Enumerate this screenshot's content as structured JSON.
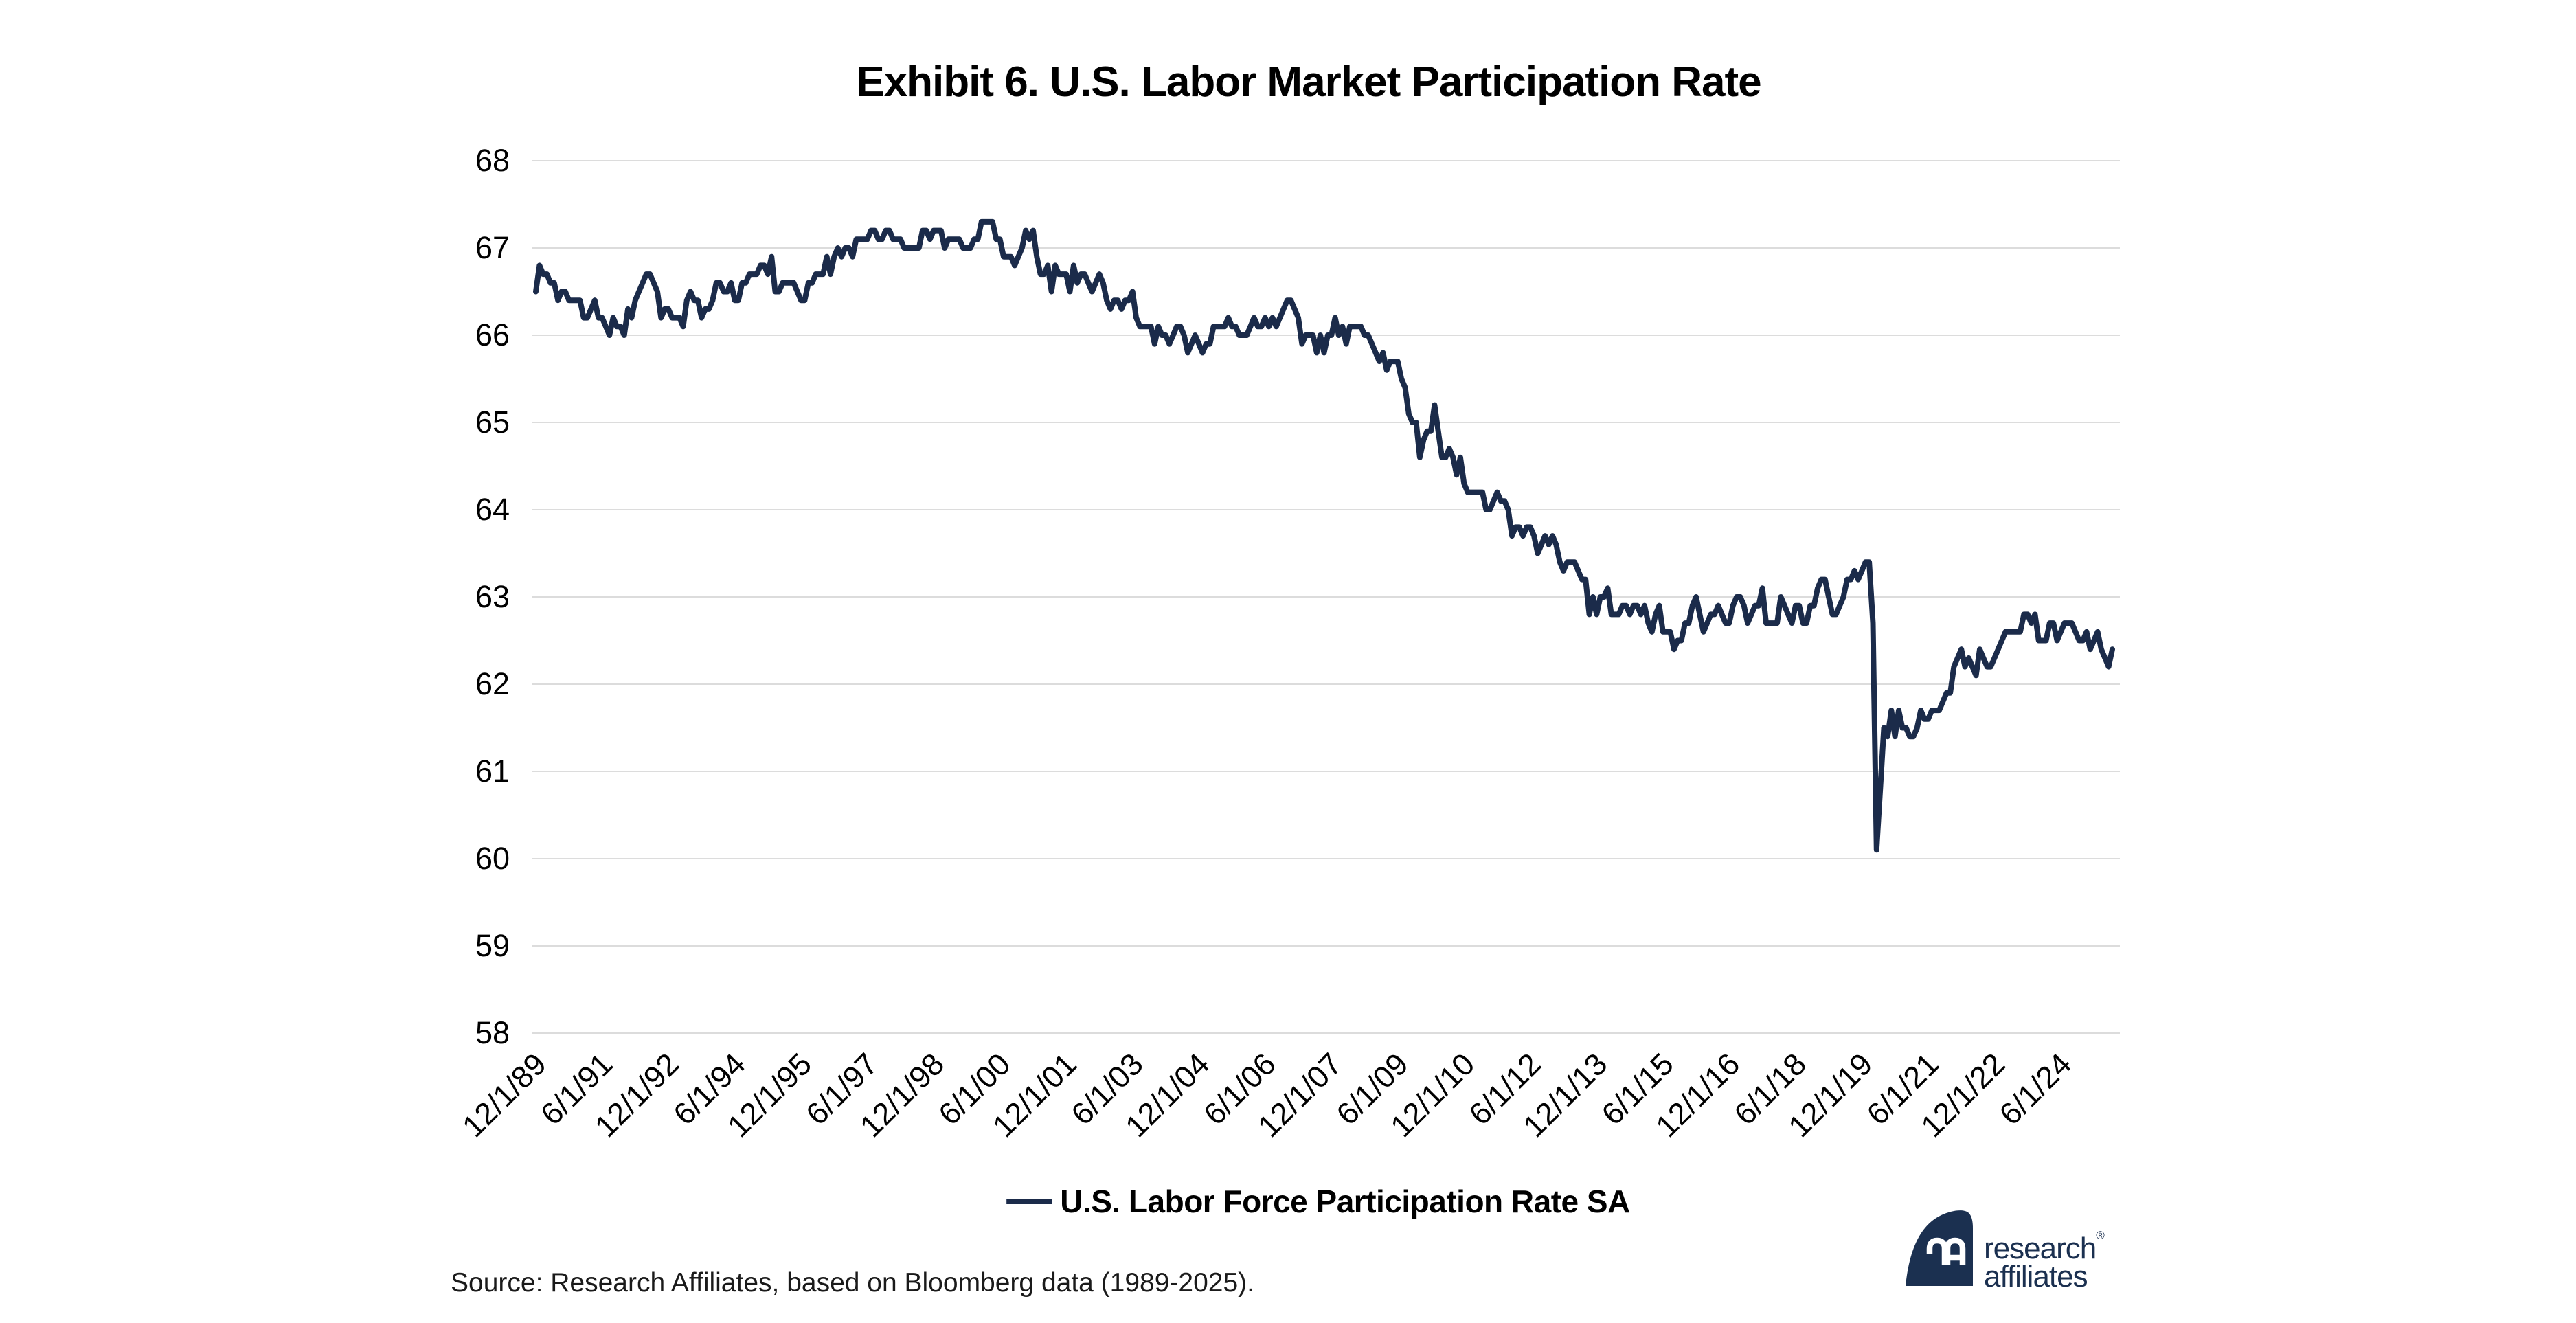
{
  "chart_data": {
    "type": "line",
    "title": "Exhibit 6. U.S. Labor Market Participation Rate",
    "xlabel": "",
    "ylabel": "",
    "ylim": [
      58,
      68
    ],
    "y_ticks": [
      68,
      67,
      66,
      65,
      64,
      63,
      62,
      61,
      60,
      59,
      58
    ],
    "grid": "horizontal",
    "legend_position": "bottom-center",
    "x_start": "12/1/1989",
    "x_end": "8/1/2025",
    "frequency": "monthly",
    "x_tick_interval_months": 18,
    "x_tick_labels": [
      "12/1/89",
      "6/1/91",
      "12/1/92",
      "6/1/94",
      "12/1/95",
      "6/1/97",
      "12/1/98",
      "6/1/00",
      "12/1/01",
      "6/1/03",
      "12/1/04",
      "6/1/06",
      "12/1/07",
      "6/1/09",
      "12/1/10",
      "6/1/12",
      "12/1/13",
      "6/1/15",
      "12/1/16",
      "6/1/18",
      "12/1/19",
      "6/1/21",
      "12/1/22",
      "6/1/24"
    ],
    "series": [
      {
        "name": "U.S. Labor Force Participation Rate SA",
        "color": "#1b2b4a",
        "values": [
          66.5,
          66.8,
          66.7,
          66.7,
          66.6,
          66.6,
          66.4,
          66.5,
          66.5,
          66.4,
          66.4,
          66.4,
          66.4,
          66.2,
          66.2,
          66.3,
          66.4,
          66.2,
          66.2,
          66.1,
          66.0,
          66.2,
          66.1,
          66.1,
          66.0,
          66.3,
          66.2,
          66.4,
          66.5,
          66.6,
          66.7,
          66.7,
          66.6,
          66.5,
          66.2,
          66.3,
          66.3,
          66.2,
          66.2,
          66.2,
          66.1,
          66.4,
          66.5,
          66.4,
          66.4,
          66.2,
          66.3,
          66.3,
          66.4,
          66.6,
          66.6,
          66.5,
          66.5,
          66.6,
          66.4,
          66.4,
          66.6,
          66.6,
          66.7,
          66.7,
          66.7,
          66.8,
          66.8,
          66.7,
          66.9,
          66.5,
          66.5,
          66.6,
          66.6,
          66.6,
          66.6,
          66.5,
          66.4,
          66.4,
          66.6,
          66.6,
          66.7,
          66.7,
          66.7,
          66.9,
          66.7,
          66.9,
          67.0,
          66.9,
          67.0,
          67.0,
          66.9,
          67.1,
          67.1,
          67.1,
          67.1,
          67.2,
          67.2,
          67.1,
          67.1,
          67.2,
          67.2,
          67.1,
          67.1,
          67.1,
          67.0,
          67.0,
          67.0,
          67.0,
          67.0,
          67.2,
          67.2,
          67.1,
          67.2,
          67.2,
          67.2,
          67.0,
          67.1,
          67.1,
          67.1,
          67.1,
          67.0,
          67.0,
          67.0,
          67.1,
          67.1,
          67.3,
          67.3,
          67.3,
          67.3,
          67.1,
          67.1,
          66.9,
          66.9,
          66.9,
          66.8,
          66.9,
          67.0,
          67.2,
          67.1,
          67.2,
          66.9,
          66.7,
          66.7,
          66.8,
          66.5,
          66.8,
          66.7,
          66.7,
          66.7,
          66.5,
          66.8,
          66.6,
          66.7,
          66.7,
          66.6,
          66.5,
          66.6,
          66.7,
          66.6,
          66.4,
          66.3,
          66.4,
          66.4,
          66.3,
          66.4,
          66.4,
          66.5,
          66.2,
          66.1,
          66.1,
          66.1,
          66.1,
          65.9,
          66.1,
          66.0,
          66.0,
          65.9,
          66.0,
          66.1,
          66.1,
          66.0,
          65.8,
          65.9,
          66.0,
          65.9,
          65.8,
          65.9,
          65.9,
          66.1,
          66.1,
          66.1,
          66.1,
          66.2,
          66.1,
          66.1,
          66.0,
          66.0,
          66.0,
          66.1,
          66.2,
          66.1,
          66.1,
          66.2,
          66.1,
          66.2,
          66.1,
          66.2,
          66.3,
          66.4,
          66.4,
          66.3,
          66.2,
          65.9,
          66.0,
          66.0,
          66.0,
          65.8,
          66.0,
          65.8,
          66.0,
          66.0,
          66.2,
          66.0,
          66.1,
          65.9,
          66.1,
          66.1,
          66.1,
          66.1,
          66.0,
          66.0,
          65.9,
          65.8,
          65.7,
          65.8,
          65.6,
          65.7,
          65.7,
          65.7,
          65.5,
          65.4,
          65.1,
          65.0,
          65.0,
          64.6,
          64.8,
          64.9,
          64.9,
          65.2,
          64.9,
          64.6,
          64.6,
          64.7,
          64.6,
          64.4,
          64.6,
          64.3,
          64.2,
          64.2,
          64.2,
          64.2,
          64.2,
          64.0,
          64.0,
          64.1,
          64.2,
          64.1,
          64.1,
          64.0,
          63.7,
          63.8,
          63.8,
          63.7,
          63.8,
          63.8,
          63.7,
          63.5,
          63.6,
          63.7,
          63.6,
          63.7,
          63.6,
          63.4,
          63.3,
          63.4,
          63.4,
          63.4,
          63.3,
          63.2,
          63.2,
          62.8,
          63.0,
          62.8,
          63.0,
          63.0,
          63.1,
          62.8,
          62.8,
          62.8,
          62.9,
          62.9,
          62.8,
          62.9,
          62.9,
          62.8,
          62.9,
          62.7,
          62.6,
          62.8,
          62.9,
          62.6,
          62.6,
          62.6,
          62.4,
          62.5,
          62.5,
          62.7,
          62.7,
          62.9,
          63.0,
          62.8,
          62.6,
          62.7,
          62.8,
          62.8,
          62.9,
          62.8,
          62.7,
          62.7,
          62.9,
          63.0,
          63.0,
          62.9,
          62.7,
          62.8,
          62.9,
          62.9,
          63.1,
          62.7,
          62.7,
          62.7,
          62.7,
          63.0,
          62.9,
          62.8,
          62.7,
          62.9,
          62.9,
          62.7,
          62.7,
          62.9,
          62.9,
          63.1,
          63.2,
          63.2,
          63.0,
          62.8,
          62.8,
          62.9,
          63.0,
          63.2,
          63.2,
          63.3,
          63.2,
          63.3,
          63.4,
          63.4,
          62.7,
          60.1,
          60.8,
          61.5,
          61.4,
          61.7,
          61.4,
          61.7,
          61.5,
          61.5,
          61.4,
          61.4,
          61.5,
          61.7,
          61.6,
          61.6,
          61.7,
          61.7,
          61.7,
          61.8,
          61.9,
          61.9,
          62.2,
          62.3,
          62.4,
          62.2,
          62.3,
          62.2,
          62.1,
          62.4,
          62.3,
          62.2,
          62.2,
          62.3,
          62.4,
          62.5,
          62.6,
          62.6,
          62.6,
          62.6,
          62.6,
          62.8,
          62.8,
          62.7,
          62.8,
          62.5,
          62.5,
          62.5,
          62.7,
          62.7,
          62.5,
          62.6,
          62.7,
          62.7,
          62.7,
          62.6,
          62.5,
          62.5,
          62.6,
          62.4,
          62.5,
          62.6,
          62.4,
          62.3,
          62.2,
          62.4
        ]
      }
    ]
  },
  "source": {
    "text": "Source: Research Affiliates, based on Bloomberg data (1989-2025)."
  },
  "logo": {
    "line1": "research",
    "registered": "®",
    "line2": "affiliates",
    "monogram": "ra-monogram"
  },
  "colors": {
    "line": "#1b2b4a",
    "grid": "#dcdcdc",
    "axis_text": "#000000",
    "title_text": "#000000",
    "logo_navy": "#1b3050",
    "background": "#ffffff"
  }
}
